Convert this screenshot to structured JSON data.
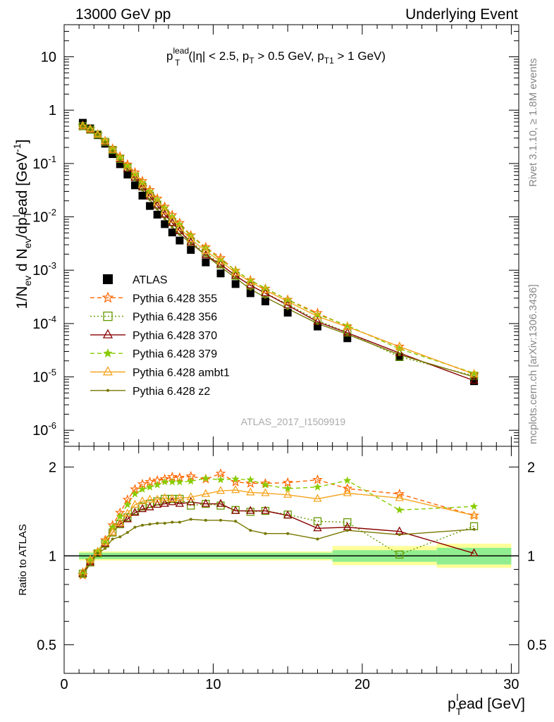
{
  "header": {
    "left": "13000 GeV pp",
    "right": "Underlying Event"
  },
  "side_text": {
    "rivet": "Rivet 3.1.10, ≥ 1.8M events",
    "mcplots": "mcplots.cern.ch [arXiv:1306.3436]"
  },
  "colors": {
    "ATLAS": "#000000",
    "355": "#ff6600",
    "356": "#669900",
    "370": "#880000",
    "379": "#88cc00",
    "ambt1": "#f5a623",
    "z2": "#777700",
    "band_inner": "#90ee90",
    "band_outer": "#ffff99"
  },
  "chart_data": [
    {
      "type": "scatter",
      "title": "p_T^lead (|η| < 2.5, p_T > 0.5 GeV, p_T1 > 1 GeV)",
      "title_parts": {
        "p": "p",
        "sup": "lead",
        "sub": "T",
        "cut_open": "(|η| < 2.5, p",
        "cut_sub1": "T",
        "cut_mid": " > 0.5 GeV, p",
        "cut_sub2": "T1",
        "cut_close": " > 1 GeV)"
      },
      "watermark": "ATLAS_2017_I1509919",
      "ylabel": "1/N_ev d N_ev/dp_T^lead [GeV^-1]",
      "ylabel_parts": {
        "a": "1/N",
        "a_sub": "ev",
        "b": " d N",
        "b_sub": "ev",
        "c": "/dp",
        "c_sub": "T",
        "c_sup": "l",
        "d": "ead [GeV",
        "d_sup": "-1",
        "e": "]"
      },
      "xlim": [
        0,
        30.5
      ],
      "ylim": [
        5e-07,
        40
      ],
      "yscale": "log",
      "y_ticks": [
        {
          "v": 1e-06,
          "m": "10",
          "e": "-6"
        },
        {
          "v": 1e-05,
          "m": "10",
          "e": "-5"
        },
        {
          "v": 0.0001,
          "m": "10",
          "e": "-4"
        },
        {
          "v": 0.001,
          "m": "10",
          "e": "-3"
        },
        {
          "v": 0.01,
          "m": "10",
          "e": "-2"
        },
        {
          "v": 0.1,
          "m": "10",
          "e": "-1"
        },
        {
          "v": 1,
          "m": "1",
          "e": ""
        },
        {
          "v": 10,
          "m": "10",
          "e": ""
        }
      ],
      "x": [
        1.25,
        1.75,
        2.25,
        2.75,
        3.25,
        3.75,
        4.25,
        4.75,
        5.25,
        5.75,
        6.25,
        6.75,
        7.25,
        7.75,
        8.5,
        9.5,
        10.5,
        11.5,
        12.5,
        13.5,
        15,
        17,
        19,
        22.5,
        27.5
      ],
      "series": [
        {
          "name": "ATLAS",
          "key": "ATLAS",
          "marker": "square",
          "line": "none",
          "values": [
            0.58,
            0.455,
            0.34,
            0.235,
            0.15,
            0.097,
            0.062,
            0.039,
            0.025,
            0.016,
            0.011,
            0.0073,
            0.0051,
            0.0036,
            0.0024,
            0.0014,
            0.00087,
            0.00055,
            0.00037,
            0.00026,
            0.00016,
            8.8e-05,
            5.3e-05,
            2.35e-05,
            8.3e-06
          ]
        },
        {
          "name": "Pythia 6.428 355",
          "key": "355",
          "marker": "star-open",
          "line": "dashed",
          "values": [
            0.5,
            0.44,
            0.35,
            0.265,
            0.19,
            0.136,
            0.096,
            0.068,
            0.047,
            0.032,
            0.022,
            0.0155,
            0.0108,
            0.0077,
            0.0045,
            0.0027,
            0.0017,
            0.00098,
            0.00065,
            0.00045,
            0.00028,
            0.000158,
            8.8e-05,
            3.7e-05,
            1.12e-05
          ]
        },
        {
          "name": "Pythia 6.428 356",
          "key": "356",
          "marker": "square-open",
          "line": "dotted",
          "values": [
            0.5,
            0.43,
            0.35,
            0.255,
            0.18,
            0.122,
            0.084,
            0.056,
            0.037,
            0.025,
            0.017,
            0.0115,
            0.008,
            0.0056,
            0.0034,
            0.0021,
            0.00128,
            0.00079,
            0.00052,
            0.00037,
            0.00023,
            0.000115,
            6.8e-05,
            2.38e-05,
            1.05e-05
          ]
        },
        {
          "name": "Pythia 6.428 370",
          "key": "370",
          "marker": "triangle-open",
          "line": "solid",
          "values": [
            0.5,
            0.43,
            0.35,
            0.255,
            0.18,
            0.12,
            0.08,
            0.054,
            0.036,
            0.024,
            0.0163,
            0.011,
            0.0077,
            0.0054,
            0.0033,
            0.0019,
            0.00128,
            0.00079,
            0.00052,
            0.00037,
            0.00022,
            0.000108,
            6.7e-05,
            2.8e-05,
            8.5e-06
          ]
        },
        {
          "name": "Pythia 6.428 379",
          "key": "379",
          "marker": "star",
          "line": "dashed",
          "values": [
            0.5,
            0.44,
            0.35,
            0.262,
            0.187,
            0.13,
            0.091,
            0.064,
            0.044,
            0.03,
            0.021,
            0.0145,
            0.0101,
            0.0071,
            0.0044,
            0.0026,
            0.00158,
            0.00099,
            0.00065,
            0.00046,
            0.00028,
            0.000148,
            9.2e-05,
            3.35e-05,
            1.18e-05
          ]
        },
        {
          "name": "Pythia 6.428 ambt1",
          "key": "ambt1",
          "marker": "triangle-open",
          "line": "solid",
          "values": [
            0.51,
            0.44,
            0.35,
            0.26,
            0.18,
            0.125,
            0.087,
            0.059,
            0.04,
            0.027,
            0.0185,
            0.0127,
            0.0088,
            0.0062,
            0.0038,
            0.0023,
            0.00146,
            0.0009,
            0.00061,
            0.00042,
            0.00026,
            0.000136,
            8.7e-05,
            3.7e-05,
            1.13e-05
          ]
        },
        {
          "name": "Pythia 6.428 z2",
          "key": "z2",
          "marker": "dot",
          "line": "solid",
          "values": [
            0.5,
            0.43,
            0.35,
            0.25,
            0.172,
            0.113,
            0.075,
            0.05,
            0.032,
            0.021,
            0.014,
            0.0093,
            0.0065,
            0.0047,
            0.0032,
            0.0019,
            0.00115,
            0.00072,
            0.00044,
            0.00031,
            0.00019,
            0.0001,
            6.3e-05,
            2.6e-05,
            1e-05
          ]
        }
      ],
      "legend": "left-center"
    },
    {
      "type": "scatter",
      "title": "",
      "ylabel": "Ratio to ATLAS",
      "xlabel": "p_T^lead [GeV]",
      "xlabel_parts": {
        "a": "p",
        "sub": "T",
        "sup": "l",
        "b": "ead [GeV]"
      },
      "xlim": [
        0,
        30.5
      ],
      "ylim": [
        0.4,
        2.35
      ],
      "yscale": "log",
      "x_ticks": [
        0,
        10,
        20,
        30
      ],
      "y_ticks": [
        0.5,
        1,
        2
      ],
      "y_tick_labels": [
        "0.5",
        "1",
        "2"
      ],
      "x": [
        1.25,
        1.75,
        2.25,
        2.75,
        3.25,
        3.75,
        4.25,
        4.75,
        5.25,
        5.75,
        6.25,
        6.75,
        7.25,
        7.75,
        8.5,
        9.5,
        10.5,
        11.5,
        12.5,
        13.5,
        15,
        17,
        19,
        22.5,
        27.5
      ],
      "reference_band": {
        "x_edges": [
          1,
          18,
          25,
          30
        ],
        "inner": [
          [
            0.975,
            1.025
          ],
          [
            0.955,
            1.045
          ],
          [
            0.935,
            1.065
          ]
        ],
        "outer": [
          [
            0.965,
            1.035
          ],
          [
            0.93,
            1.08
          ],
          [
            0.91,
            1.1
          ]
        ]
      },
      "series": [
        {
          "name": "Pythia 6.428 355",
          "key": "355",
          "marker": "star-open",
          "line": "dashed",
          "values": [
            0.86,
            0.96,
            1.03,
            1.13,
            1.27,
            1.4,
            1.55,
            1.68,
            1.75,
            1.78,
            1.8,
            1.82,
            1.85,
            1.84,
            1.86,
            1.82,
            1.9,
            1.78,
            1.76,
            1.76,
            1.77,
            1.81,
            1.69,
            1.62,
            1.37
          ]
        },
        {
          "name": "Pythia 6.428 356",
          "key": "356",
          "marker": "square-open",
          "line": "dotted",
          "values": [
            0.87,
            0.95,
            1.02,
            1.1,
            1.2,
            1.28,
            1.35,
            1.42,
            1.47,
            1.5,
            1.53,
            1.56,
            1.56,
            1.56,
            1.48,
            1.5,
            1.48,
            1.43,
            1.41,
            1.42,
            1.38,
            1.31,
            1.3,
            1.01,
            1.26
          ]
        },
        {
          "name": "Pythia 6.428 370",
          "key": "370",
          "marker": "triangle-open",
          "line": "solid",
          "values": [
            0.87,
            0.95,
            1.03,
            1.1,
            1.2,
            1.28,
            1.33,
            1.4,
            1.44,
            1.46,
            1.49,
            1.5,
            1.52,
            1.5,
            1.52,
            1.5,
            1.5,
            1.42,
            1.42,
            1.42,
            1.37,
            1.24,
            1.25,
            1.21,
            1.02
          ]
        },
        {
          "name": "Pythia 6.428 379",
          "key": "379",
          "marker": "star",
          "line": "dashed",
          "values": [
            0.87,
            0.97,
            1.04,
            1.12,
            1.25,
            1.36,
            1.49,
            1.62,
            1.68,
            1.71,
            1.74,
            1.78,
            1.78,
            1.78,
            1.79,
            1.83,
            1.81,
            1.82,
            1.81,
            1.74,
            1.69,
            1.71,
            1.8,
            1.43,
            1.47
          ]
        },
        {
          "name": "Pythia 6.428 ambt1",
          "key": "ambt1",
          "marker": "triangle-open",
          "line": "solid",
          "values": [
            0.88,
            0.97,
            1.03,
            1.11,
            1.2,
            1.29,
            1.39,
            1.49,
            1.53,
            1.55,
            1.55,
            1.57,
            1.56,
            1.57,
            1.58,
            1.62,
            1.66,
            1.67,
            1.64,
            1.63,
            1.61,
            1.56,
            1.63,
            1.57,
            1.37
          ]
        },
        {
          "name": "Pythia 6.428 z2",
          "key": "z2",
          "marker": "dot",
          "line": "solid",
          "values": [
            0.86,
            0.94,
            1.02,
            1.06,
            1.14,
            1.16,
            1.2,
            1.25,
            1.27,
            1.28,
            1.29,
            1.29,
            1.3,
            1.3,
            1.33,
            1.32,
            1.32,
            1.31,
            1.22,
            1.19,
            1.19,
            1.14,
            1.22,
            1.18,
            1.23
          ]
        }
      ]
    }
  ]
}
